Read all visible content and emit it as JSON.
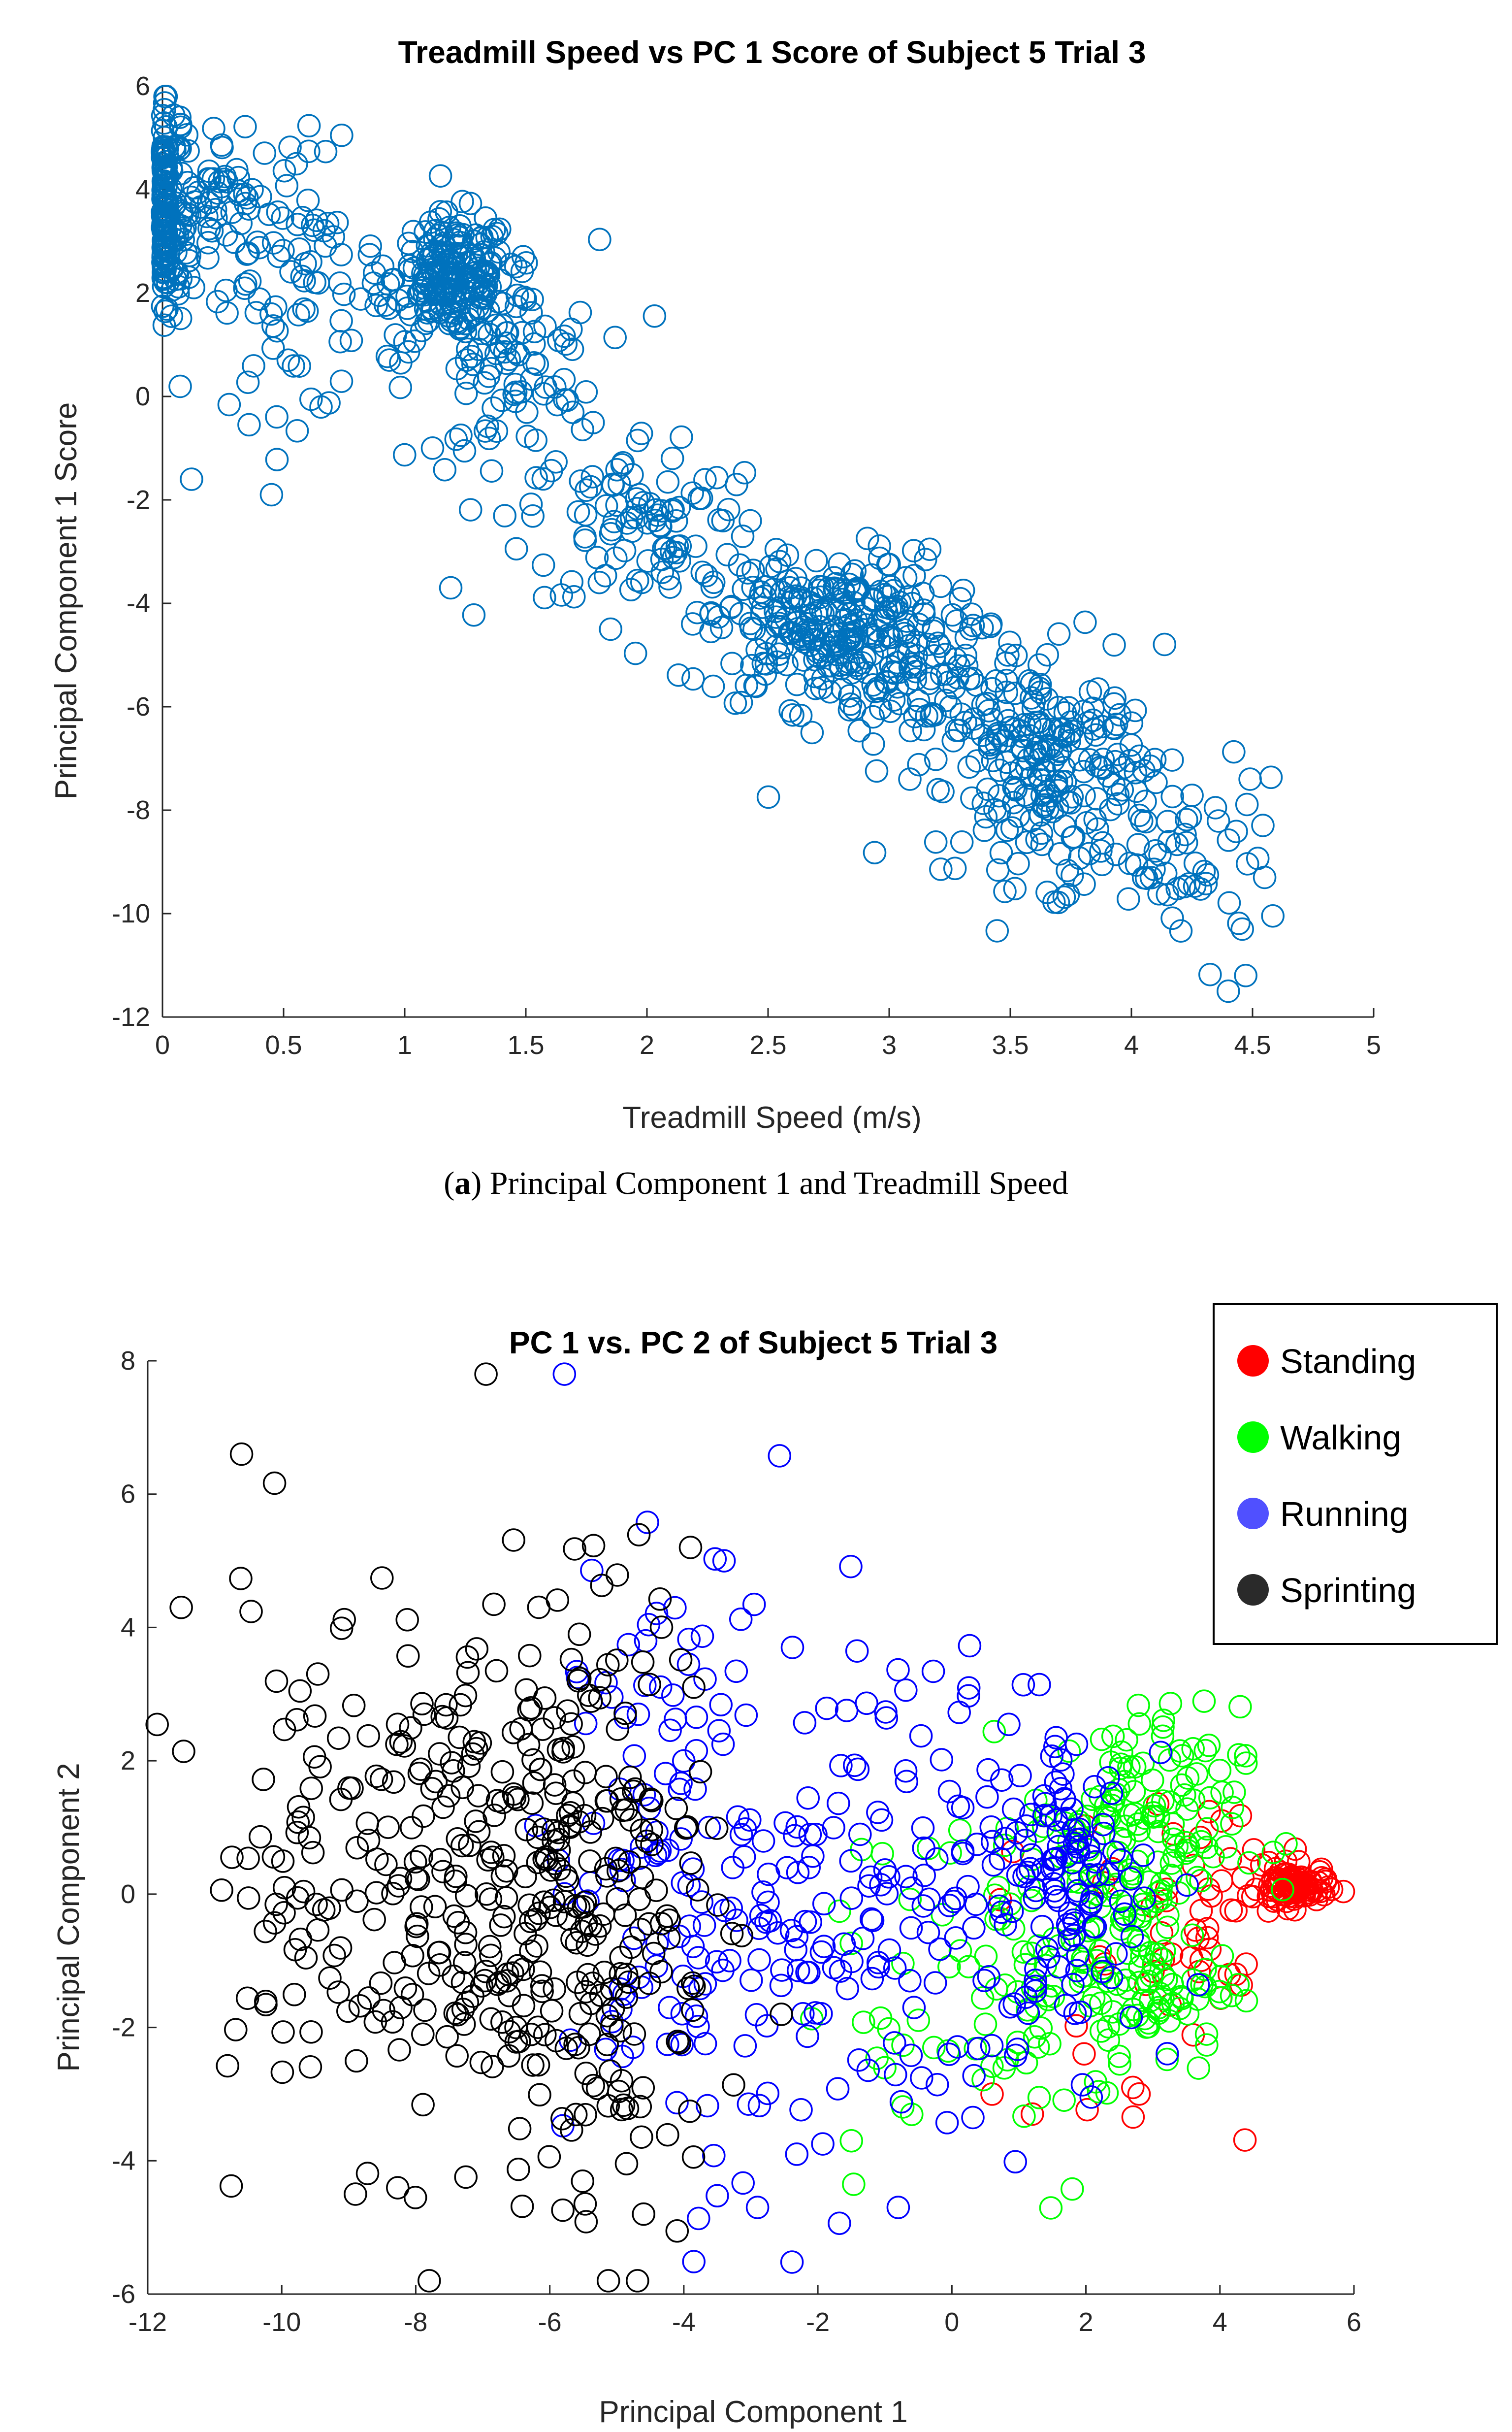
{
  "captions": {
    "a_letter": "a",
    "a_text": "Principal Component 1 and Treadmill Speed"
  },
  "colors": {
    "series_a": "#0072BD",
    "standing": "#ff0000",
    "walking": "#00ff00",
    "running": "#0000ff",
    "sprinting": "#000000"
  },
  "chart_data": [
    {
      "type": "scatter",
      "title": "Treadmill Speed vs PC 1 Score of Subject 5 Trial 3",
      "xlabel": "Treadmill Speed (m/s)",
      "ylabel": "Principal Component 1 Score",
      "xlim": [
        0,
        5
      ],
      "ylim": [
        -12,
        6
      ],
      "xticks": [
        "0",
        "0.5",
        "1",
        "1.5",
        "2",
        "2.5",
        "3",
        "3.5",
        "4",
        "4.5",
        "5"
      ],
      "yticks": [
        "6",
        "4",
        "2",
        "0",
        "-2",
        "-4",
        "-6",
        "-8",
        "-10",
        "-12"
      ],
      "marker": "open-circle",
      "series": [
        {
          "name": "PC 1 Score",
          "clusters": [
            {
              "x": 0.0,
              "y": 3.6,
              "sx": 0.01,
              "sy": 1.1,
              "n": 140
            },
            {
              "x": 0.22,
              "y": 3.6,
              "sx": 0.15,
              "sy": 0.7,
              "n": 70
            },
            {
              "x": 0.55,
              "y": 2.2,
              "sx": 0.2,
              "sy": 1.3,
              "n": 80
            },
            {
              "x": 1.2,
              "y": 2.3,
              "sx": 0.12,
              "sy": 0.6,
              "n": 180
            },
            {
              "x": 1.4,
              "y": 0.6,
              "sx": 0.2,
              "sy": 1.2,
              "n": 110
            },
            {
              "x": 2.0,
              "y": -2.4,
              "sx": 0.25,
              "sy": 0.9,
              "n": 90
            },
            {
              "x": 2.75,
              "y": -4.5,
              "sx": 0.25,
              "sy": 0.75,
              "n": 260
            },
            {
              "x": 3.35,
              "y": -6.0,
              "sx": 0.3,
              "sy": 1.0,
              "n": 110
            },
            {
              "x": 3.7,
              "y": -7.4,
              "sx": 0.2,
              "sy": 1.0,
              "n": 170
            },
            {
              "x": 4.25,
              "y": -9.2,
              "sx": 0.2,
              "sy": 0.8,
              "n": 50
            }
          ],
          "highlights": [
            {
              "x": 4.4,
              "y": -11.5
            },
            {
              "x": 1.19,
              "y": -3.7
            },
            {
              "x": 1.85,
              "y": -4.5
            },
            {
              "x": 4.49,
              "y": -7.4
            },
            {
              "x": 4.55,
              "y": -9.3
            },
            {
              "x": 0.45,
              "y": -1.9
            },
            {
              "x": 0.12,
              "y": -1.6
            }
          ]
        }
      ]
    },
    {
      "type": "scatter",
      "title": "PC 1 vs. PC 2 of Subject 5 Trial 3",
      "xlabel": "Principal Component 1",
      "ylabel": "Principal Component 2",
      "xlim": [
        -12,
        6
      ],
      "ylim": [
        -6,
        8
      ],
      "xticks": [
        "-12",
        "-10",
        "-8",
        "-6",
        "-4",
        "-2",
        "0",
        "2",
        "4",
        "6"
      ],
      "yticks": [
        "8",
        "6",
        "4",
        "2",
        "0",
        "-2",
        "-4",
        "-6"
      ],
      "legend": [
        "Standing",
        "Walking",
        "Running",
        "Sprinting"
      ],
      "legend_position": "top-right",
      "marker": "open-circle",
      "series": [
        {
          "name": "Standing",
          "color": "#ff0000",
          "clusters": [
            {
              "x": 5.1,
              "y": 0.1,
              "sx": 0.25,
              "sy": 0.15,
              "n": 90
            },
            {
              "x": 3.8,
              "y": 0.0,
              "sx": 0.6,
              "sy": 0.8,
              "n": 40
            },
            {
              "x": 2.5,
              "y": -1.5,
              "sx": 1.0,
              "sy": 1.2,
              "n": 16
            }
          ],
          "highlights": [
            {
              "x": 1.2,
              "y": -3.3
            },
            {
              "x": 2.7,
              "y": -2.9
            },
            {
              "x": 0.6,
              "y": -3.0
            }
          ]
        },
        {
          "name": "Walking",
          "color": "#00ff00",
          "clusters": [
            {
              "x": 2.7,
              "y": 1.0,
              "sx": 0.8,
              "sy": 0.9,
              "n": 140
            },
            {
              "x": 2.6,
              "y": -1.3,
              "sx": 0.8,
              "sy": 0.7,
              "n": 110
            },
            {
              "x": 0.0,
              "y": -1.3,
              "sx": 1.3,
              "sy": 1.8,
              "n": 50
            }
          ],
          "highlights": [
            {
              "x": -1.5,
              "y": -3.7
            },
            {
              "x": 3.8,
              "y": -2.1
            }
          ]
        },
        {
          "name": "Running",
          "color": "#0000ff",
          "clusters": [
            {
              "x": 1.8,
              "y": 0.2,
              "sx": 0.5,
              "sy": 1.2,
              "n": 90
            },
            {
              "x": -0.7,
              "y": 0.2,
              "sx": 1.6,
              "sy": 1.9,
              "n": 170
            },
            {
              "x": -4.0,
              "y": 0.3,
              "sx": 0.9,
              "sy": 2.3,
              "n": 130
            }
          ],
          "highlights": [
            {
              "x": -0.8,
              "y": -4.7
            },
            {
              "x": -2.9,
              "y": -4.7
            },
            {
              "x": -3.4,
              "y": 5.0
            }
          ]
        },
        {
          "name": "Sprinting",
          "color": "#000000",
          "clusters": [
            {
              "x": -7.5,
              "y": 0.3,
              "sx": 1.5,
              "sy": 2.1,
              "n": 260
            },
            {
              "x": -5.2,
              "y": 0.0,
              "sx": 0.8,
              "sy": 2.4,
              "n": 160
            },
            {
              "x": -9.8,
              "y": 0.5,
              "sx": 0.7,
              "sy": 2.3,
              "n": 30
            }
          ],
          "highlights": [
            {
              "x": -11.5,
              "y": 4.3
            },
            {
              "x": -10.6,
              "y": 6.6
            },
            {
              "x": -4.6,
              "y": -4.8
            },
            {
              "x": -8.9,
              "y": -4.5
            },
            {
              "x": -3.9,
              "y": 5.2
            }
          ]
        }
      ]
    }
  ]
}
